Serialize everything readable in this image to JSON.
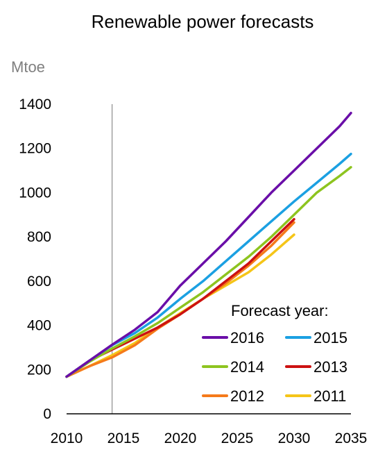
{
  "chart_data": {
    "type": "line",
    "title": "Renewable power forecasts",
    "ylabel": "Mtoe",
    "xlabel": "",
    "xlim": [
      2010,
      2035
    ],
    "ylim": [
      0,
      1400
    ],
    "xticks": [
      2010,
      2015,
      2020,
      2025,
      2030,
      2035
    ],
    "yticks": [
      0,
      200,
      400,
      600,
      800,
      1000,
      1200,
      1400
    ],
    "grid": false,
    "reference_line_x": 2014,
    "legend": {
      "title": "Forecast year:",
      "placement": "bottom-right"
    },
    "series": [
      {
        "name": "2016",
        "color": "#6a0ea8",
        "x": [
          2010,
          2012,
          2014,
          2016,
          2018,
          2020,
          2022,
          2024,
          2026,
          2028,
          2030,
          2032,
          2034,
          2035
        ],
        "y": [
          168,
          240,
          312,
          380,
          460,
          580,
          680,
          780,
          890,
          1000,
          1100,
          1200,
          1300,
          1360
        ]
      },
      {
        "name": "2015",
        "color": "#1ba0e2",
        "x": [
          2010,
          2012,
          2014,
          2016,
          2018,
          2020,
          2022,
          2024,
          2026,
          2028,
          2030,
          2032,
          2034,
          2035
        ],
        "y": [
          168,
          240,
          310,
          365,
          435,
          520,
          600,
          690,
          780,
          870,
          960,
          1045,
          1130,
          1175
        ]
      },
      {
        "name": "2014",
        "color": "#8dc41f",
        "x": [
          2010,
          2012,
          2014,
          2016,
          2018,
          2020,
          2022,
          2024,
          2026,
          2028,
          2030,
          2032,
          2034,
          2035
        ],
        "y": [
          168,
          235,
          295,
          350,
          410,
          480,
          550,
          630,
          710,
          800,
          900,
          1000,
          1075,
          1115
        ]
      },
      {
        "name": "2013",
        "color": "#cc1111",
        "x": [
          2010,
          2012,
          2014,
          2016,
          2018,
          2020,
          2022,
          2024,
          2026,
          2028,
          2030
        ],
        "y": [
          168,
          240,
          290,
          340,
          390,
          450,
          520,
          600,
          680,
          780,
          880
        ]
      },
      {
        "name": "2012",
        "color": "#f57a1a",
        "x": [
          2010,
          2012,
          2014,
          2016,
          2018,
          2020,
          2022,
          2024,
          2026,
          2028,
          2030
        ],
        "y": [
          168,
          215,
          255,
          310,
          385,
          450,
          520,
          590,
          670,
          760,
          865
        ]
      },
      {
        "name": "2011",
        "color": "#f5c518",
        "x": [
          2010,
          2012,
          2014,
          2016,
          2018,
          2020,
          2022,
          2024,
          2026,
          2028,
          2030
        ],
        "y": [
          168,
          215,
          265,
          320,
          390,
          455,
          520,
          580,
          640,
          720,
          810
        ]
      }
    ]
  }
}
